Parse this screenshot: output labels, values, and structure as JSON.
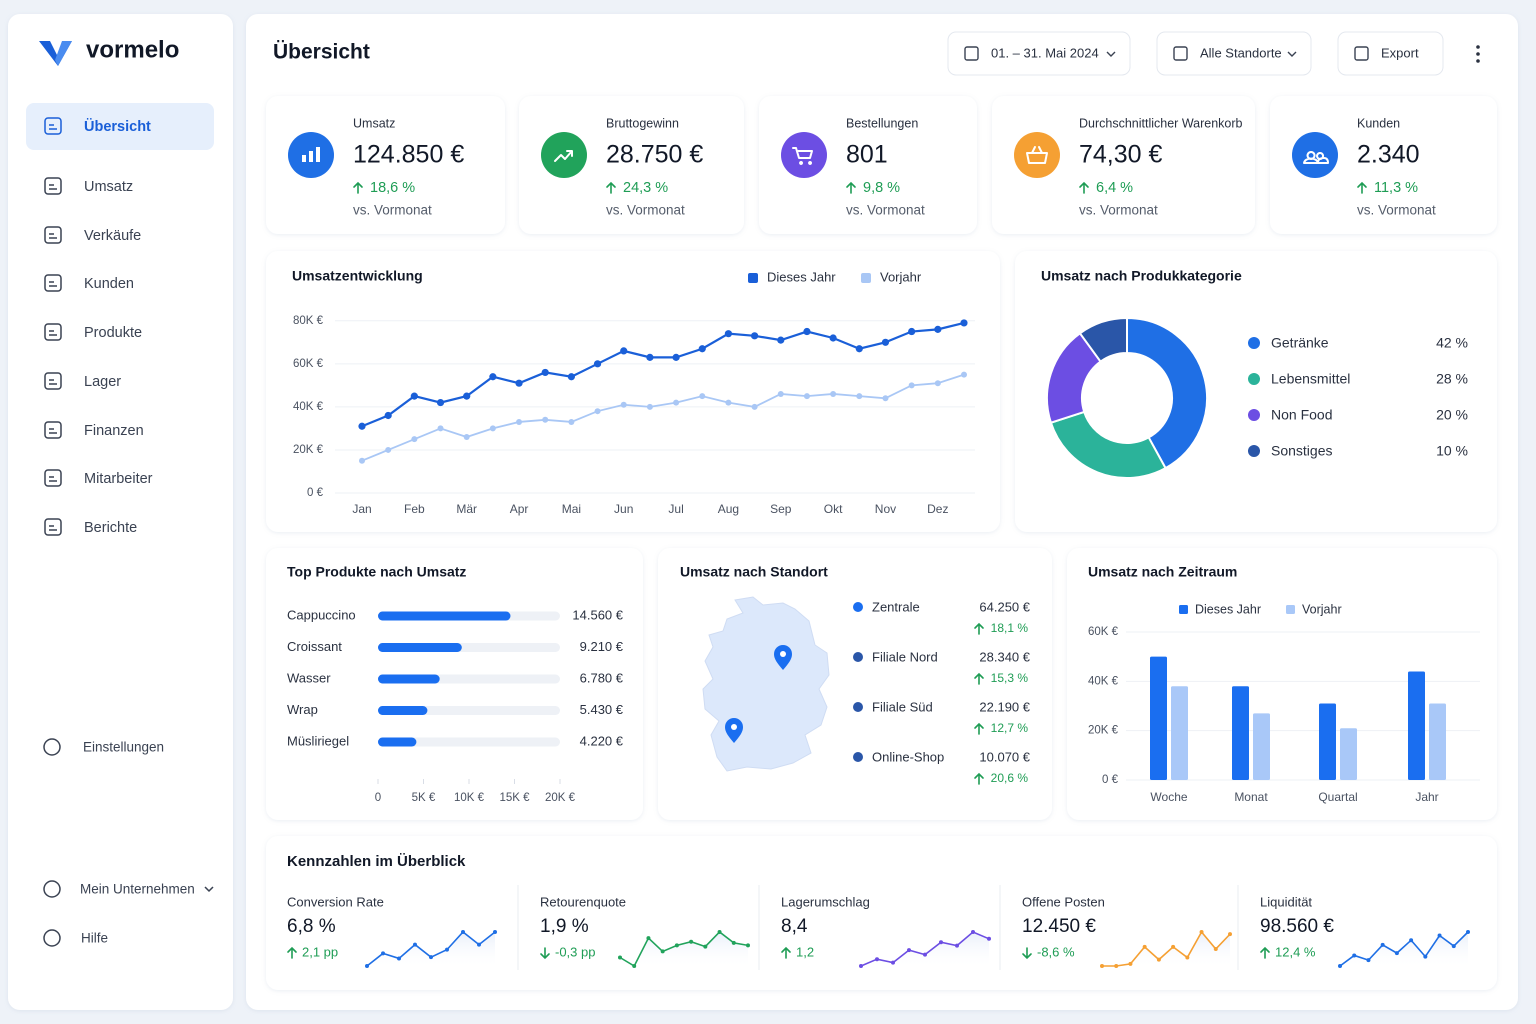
{
  "sidebar": {
    "brand": "vormelo",
    "nav": [
      "Übersicht",
      "Umsatz",
      "Verkäufe",
      "Kunden",
      "Produkte",
      "Lager",
      "Finanzen",
      "Mitarbeiter",
      "Berichte"
    ],
    "settings": "Einstellungen",
    "company": "Mein Unternehmen",
    "help": "Hilfe"
  },
  "header": {
    "title": "Übersicht",
    "date_range": "01. – 31. Mai 2024",
    "location": "Alle Standorte",
    "export": "Export"
  },
  "kpis": [
    {
      "label": "Umsatz",
      "value": "124.850 €",
      "change": "18,6 %",
      "note": "vs. Vormonat",
      "color": "#1f6fe5"
    },
    {
      "label": "Bruttogewinn",
      "value": "28.750 €",
      "change": "24,3 %",
      "note": "vs. Vormonat",
      "color": "#21a35b"
    },
    {
      "label": "Bestellungen",
      "value": "801",
      "change": "9,8 %",
      "note": "vs. Vormonat",
      "color": "#6c4ee3"
    },
    {
      "label": "Durchschnittlicher Warenkorb",
      "value": "74,30 €",
      "change": "6,4 %",
      "note": "vs. Vormonat",
      "color": "#f5a033"
    },
    {
      "label": "Kunden",
      "value": "2.340",
      "change": "11,3 %",
      "note": "vs. Vormonat",
      "color": "#1f6fe5"
    }
  ],
  "revenue_trend": {
    "type": "line",
    "title": "Umsatzentwicklung",
    "categories": [
      "Jan",
      null,
      "Feb",
      null,
      "Mär",
      null,
      "Apr",
      null,
      "Mai",
      null,
      "Jun",
      null,
      "Jul",
      null,
      "Aug",
      null,
      "Sep",
      null,
      "Okt",
      null,
      "Nov",
      null,
      "Dez",
      null
    ],
    "series": [
      {
        "name": "Dieses Jahr",
        "color": "#1a5fd8",
        "values": [
          31000,
          36000,
          45000,
          42000,
          45000,
          54000,
          51000,
          56000,
          54000,
          60000,
          66000,
          63000,
          63000,
          67000,
          74000,
          73000,
          71000,
          75000,
          72000,
          67000,
          70000,
          75000,
          76000,
          79000
        ]
      },
      {
        "name": "Vorjahr",
        "color": "#a9c7f5",
        "values": [
          15000,
          20000,
          25000,
          30000,
          26000,
          30000,
          33000,
          34000,
          33000,
          38000,
          41000,
          40000,
          42000,
          45000,
          42000,
          40000,
          46000,
          45000,
          46000,
          45000,
          44000,
          50000,
          51000,
          55000
        ]
      }
    ],
    "ylim": [
      0,
      85000
    ],
    "yticks": [
      {
        "value": 0,
        "label": "0 €"
      },
      {
        "value": 20000,
        "label": "20K €"
      },
      {
        "value": 40000,
        "label": "40K €"
      },
      {
        "value": 60000,
        "label": "60K €"
      },
      {
        "value": 80000,
        "label": "80K €"
      }
    ],
    "grid": true
  },
  "category_share": {
    "type": "pie",
    "title": "Umsatz nach Produkkategorie",
    "categories": [
      "Getränke",
      "Lebensmittel",
      "Non Food",
      "Sonstiges"
    ],
    "values": [
      42,
      28,
      20,
      10
    ],
    "value_labels": [
      "42 %",
      "28 %",
      "20 %",
      "10 %"
    ],
    "colors": [
      "#1f6fe5",
      "#2bb39a",
      "#6c4ee3",
      "#2a56a8"
    ]
  },
  "top_products": {
    "type": "bar",
    "orientation": "horizontal",
    "title": "Top Produkte nach Umsatz",
    "categories": [
      "Cappuccino",
      "Croissant",
      "Wasser",
      "Wrap",
      "Müsliriegel"
    ],
    "values": [
      14560,
      9210,
      6780,
      5430,
      4220
    ],
    "value_labels": [
      "14.560 €",
      "9.210 €",
      "6.780 €",
      "5.430 €",
      "4.220 €"
    ],
    "color": "#1a6ef0",
    "xlim": [
      0,
      20000
    ],
    "xticks": [
      0,
      {
        "value": 5000,
        "label": "5K €"
      },
      {
        "value": 10000,
        "label": "10K €"
      },
      {
        "value": 15000,
        "label": "15K €"
      },
      {
        "value": 20000,
        "label": "20K €"
      }
    ]
  },
  "locations": {
    "title": "Umsatz nach Standort",
    "color": "#2a56a8",
    "items": [
      {
        "name": "Zentrale",
        "value": "64.250 €",
        "change": "18,1 %"
      },
      {
        "name": "Filiale Nord",
        "value": "28.340 €",
        "change": "15,3 %"
      },
      {
        "name": "Filiale Süd",
        "value": "22.190 €",
        "change": "12,7 %"
      },
      {
        "name": "Online-Shop",
        "value": "10.070 €",
        "change": "20,6 %"
      }
    ]
  },
  "period_revenue": {
    "type": "bar",
    "title": "Umsatz nach Zeitraum",
    "categories": [
      "Woche",
      "Monat",
      "Quartal",
      "Jahr"
    ],
    "series": [
      {
        "name": "Dieses Jahr",
        "color": "#1a6ef0",
        "values": [
          50000,
          38000,
          31000,
          44000
        ]
      },
      {
        "name": "Vorjahr",
        "color": "#a9c8f8",
        "values": [
          38000,
          27000,
          21000,
          31000
        ]
      }
    ],
    "ylim": [
      0,
      60000
    ],
    "yticks": [
      {
        "value": 0,
        "label": "0 €"
      },
      {
        "value": 20000,
        "label": "20K €"
      },
      {
        "value": 40000,
        "label": "40K €"
      },
      {
        "value": 60000,
        "label": "60K €"
      }
    ],
    "grid": true
  },
  "key_figures": {
    "title": "Kennzahlen im Überblick",
    "items": [
      {
        "label": "Conversion Rate",
        "value": "6,8 %",
        "change": "2,1 pp",
        "trend": "up",
        "color": "#1f6fe5",
        "sparkline": [
          2,
          12,
          8,
          19,
          9,
          15,
          29,
          19,
          29
        ]
      },
      {
        "label": "Retourenquote",
        "value": "1,9 %",
        "change": "-0,3 pp",
        "trend": "down",
        "color": "#21a35b",
        "sparkline": [
          7,
          0,
          23,
          12,
          17,
          20,
          16,
          28,
          19,
          17
        ]
      },
      {
        "label": "Lagerumschlag",
        "value": "8,4",
        "change": "1,2",
        "trend": "up",
        "color": "#6c4ee3",
        "sparkline": [
          1,
          7,
          4,
          15,
          11,
          22,
          19,
          31,
          25
        ]
      },
      {
        "label": "Offene Posten",
        "value": "12.450 €",
        "change": "-8,6 %",
        "trend": "down",
        "color": "#f5a033",
        "sparkline": [
          2,
          2,
          3,
          11,
          5,
          11,
          6,
          18,
          10,
          17
        ]
      },
      {
        "label": "Liquidität",
        "value": "98.560 €",
        "change": "12,4 %",
        "trend": "up",
        "color": "#1f6fe5",
        "sparkline": [
          2,
          11,
          7,
          20,
          13,
          24,
          10,
          28,
          19,
          31
        ]
      }
    ]
  }
}
